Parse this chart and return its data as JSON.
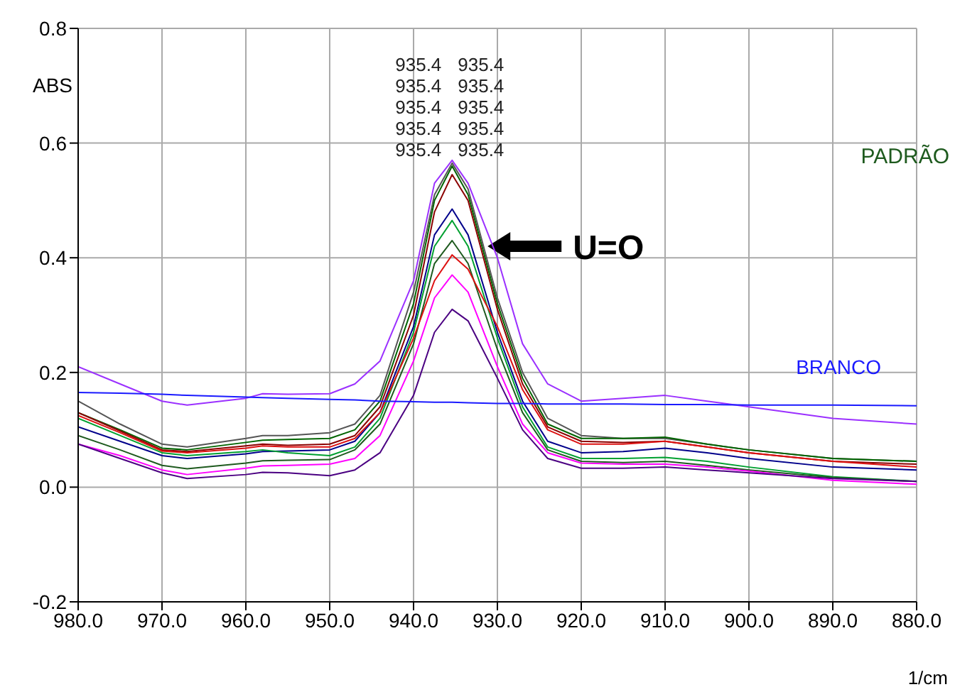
{
  "chart_data": {
    "type": "line",
    "ylabel": "ABS",
    "xlabel": "1/cm",
    "x": [
      980,
      975,
      970,
      967,
      960,
      958,
      955,
      950,
      947,
      944,
      940,
      937.5,
      935.4,
      933.5,
      930,
      927,
      924,
      920,
      915,
      910,
      905,
      900,
      890,
      880
    ],
    "series": [
      {
        "color": "#9b30ff",
        "values": [
          0.21,
          0.18,
          0.15,
          0.143,
          0.155,
          0.163,
          0.162,
          0.163,
          0.18,
          0.22,
          0.36,
          0.53,
          0.57,
          0.53,
          0.4,
          0.25,
          0.18,
          0.15,
          0.155,
          0.16,
          0.15,
          0.14,
          0.12,
          0.11
        ]
      },
      {
        "color": "#555555",
        "values": [
          0.15,
          0.11,
          0.075,
          0.07,
          0.085,
          0.09,
          0.09,
          0.095,
          0.11,
          0.16,
          0.34,
          0.51,
          0.565,
          0.52,
          0.33,
          0.2,
          0.12,
          0.09,
          0.085,
          0.085,
          0.075,
          0.065,
          0.05,
          0.045
        ]
      },
      {
        "color": "#006400",
        "values": [
          0.13,
          0.1,
          0.068,
          0.065,
          0.078,
          0.082,
          0.083,
          0.085,
          0.1,
          0.15,
          0.32,
          0.5,
          0.56,
          0.51,
          0.32,
          0.19,
          0.11,
          0.085,
          0.085,
          0.087,
          0.075,
          0.065,
          0.05,
          0.045
        ]
      },
      {
        "color": "#8b0000",
        "values": [
          0.13,
          0.098,
          0.065,
          0.062,
          0.072,
          0.075,
          0.073,
          0.075,
          0.09,
          0.14,
          0.3,
          0.48,
          0.545,
          0.5,
          0.31,
          0.18,
          0.105,
          0.08,
          0.078,
          0.08,
          0.07,
          0.06,
          0.045,
          0.04
        ]
      },
      {
        "color": "#00008b",
        "values": [
          0.105,
          0.08,
          0.055,
          0.05,
          0.058,
          0.062,
          0.063,
          0.065,
          0.08,
          0.13,
          0.28,
          0.44,
          0.485,
          0.44,
          0.27,
          0.15,
          0.08,
          0.06,
          0.062,
          0.068,
          0.06,
          0.05,
          0.035,
          0.03
        ]
      },
      {
        "color": "#00a030",
        "values": [
          0.12,
          0.09,
          0.06,
          0.055,
          0.062,
          0.065,
          0.06,
          0.055,
          0.07,
          0.12,
          0.27,
          0.42,
          0.465,
          0.42,
          0.26,
          0.14,
          0.07,
          0.05,
          0.05,
          0.052,
          0.045,
          0.035,
          0.018,
          0.01
        ]
      },
      {
        "color": "#1e5a1e",
        "values": [
          0.09,
          0.065,
          0.038,
          0.032,
          0.042,
          0.046,
          0.047,
          0.048,
          0.065,
          0.11,
          0.25,
          0.39,
          0.43,
          0.39,
          0.24,
          0.13,
          0.065,
          0.045,
          0.043,
          0.045,
          0.038,
          0.03,
          0.017,
          0.01
        ]
      },
      {
        "color": "#dd1111",
        "values": [
          0.125,
          0.095,
          0.063,
          0.06,
          0.068,
          0.072,
          0.07,
          0.07,
          0.085,
          0.13,
          0.26,
          0.36,
          0.405,
          0.38,
          0.28,
          0.17,
          0.1,
          0.075,
          0.075,
          0.08,
          0.07,
          0.06,
          0.045,
          0.035
        ]
      },
      {
        "color": "#ff00ff",
        "values": [
          0.075,
          0.055,
          0.03,
          0.022,
          0.033,
          0.037,
          0.038,
          0.04,
          0.05,
          0.09,
          0.22,
          0.33,
          0.37,
          0.34,
          0.21,
          0.11,
          0.06,
          0.042,
          0.04,
          0.04,
          0.035,
          0.028,
          0.012,
          0.005
        ]
      },
      {
        "color": "#4b0082",
        "values": [
          0.075,
          0.05,
          0.025,
          0.015,
          0.022,
          0.026,
          0.025,
          0.02,
          0.03,
          0.06,
          0.16,
          0.27,
          0.31,
          0.29,
          0.19,
          0.1,
          0.05,
          0.033,
          0.033,
          0.035,
          0.03,
          0.025,
          0.015,
          0.01
        ]
      },
      {
        "name": "BRANCO",
        "color": "#1a1aff",
        "values": [
          0.165,
          0.164,
          0.162,
          0.16,
          0.157,
          0.156,
          0.155,
          0.153,
          0.152,
          0.15,
          0.149,
          0.148,
          0.148,
          0.147,
          0.146,
          0.146,
          0.145,
          0.145,
          0.145,
          0.144,
          0.144,
          0.143,
          0.143,
          0.142
        ]
      }
    ],
    "annotations": [
      "935.4",
      "935.4",
      "935.4",
      "935.4",
      "935.4",
      "935.4",
      "935.4",
      "935.4",
      "935.4",
      "935.4",
      "U=O",
      "PADRÃO"
    ],
    "xlim": [
      980,
      880
    ],
    "xticks": [
      {
        "value": 980,
        "label": "980.0"
      },
      {
        "value": 970,
        "label": "970.0"
      },
      {
        "value": 960,
        "label": "960.0"
      },
      {
        "value": 950,
        "label": "950.0"
      },
      {
        "value": 940,
        "label": "940.0"
      },
      {
        "value": 930,
        "label": "930.0"
      },
      {
        "value": 920,
        "label": "920.0"
      },
      {
        "value": 910,
        "label": "910.0"
      },
      {
        "value": 900,
        "label": "900.0"
      },
      {
        "value": 890,
        "label": "890.0"
      },
      {
        "value": 880,
        "label": "880.0"
      }
    ],
    "ylim": [
      -0.2,
      0.8
    ],
    "yticks": [
      -0.2,
      {
        "value": 0,
        "label": "0.0"
      },
      0.2,
      0.4,
      0.6,
      0.8
    ],
    "grid": true,
    "marker": "none",
    "line_style": "solid"
  }
}
